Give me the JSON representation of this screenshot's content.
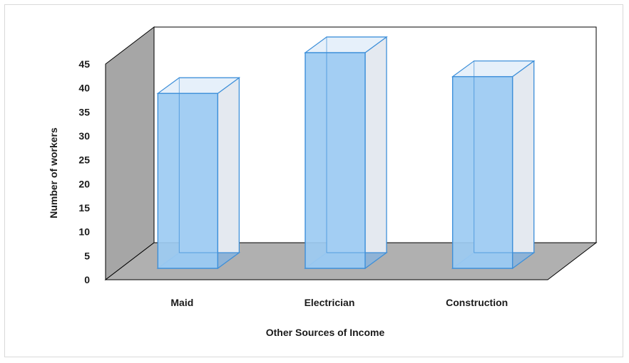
{
  "chart_data": {
    "type": "bar",
    "categories": [
      "Maid",
      "Electrician",
      "Construction"
    ],
    "values": [
      36.5,
      45,
      40
    ],
    "xlabel": "Other Sources of Income",
    "ylabel": "Number of workers",
    "ylim": [
      0,
      45
    ],
    "yticks": [
      "0",
      "5",
      "10",
      "15",
      "20",
      "25",
      "30",
      "35",
      "40",
      "45"
    ],
    "grid": false,
    "legend": "none",
    "bar_color": "#9ccbf2",
    "bar_edge_color": "#3d8fd9",
    "wall_color": "#a6a6a6",
    "floor_color": "#b0b0b0"
  }
}
